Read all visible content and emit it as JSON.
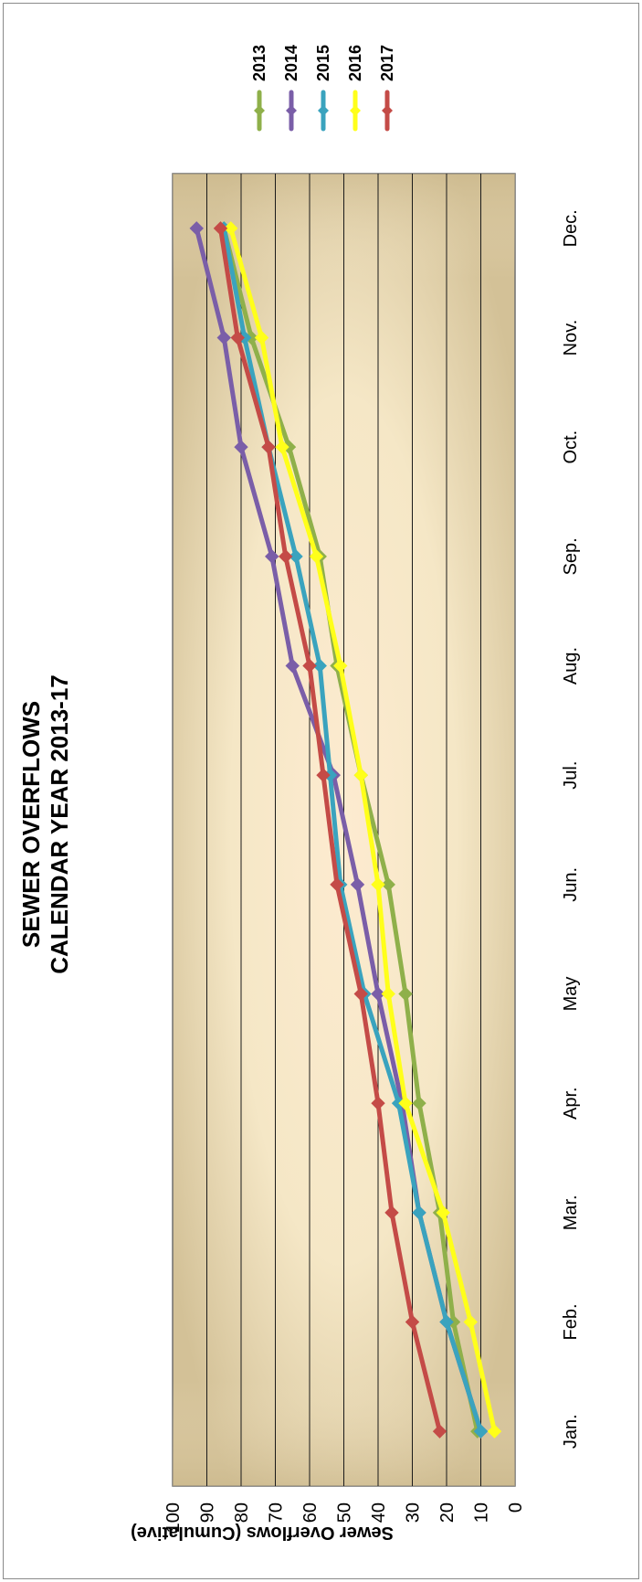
{
  "chart_data": {
    "type": "line",
    "title": "SEWER OVERFLOWS",
    "subtitle": "CALENDAR YEAR 2013-17",
    "xlabel": "",
    "ylabel": "Sewer Overflows (Cumulative)",
    "ylim": [
      0,
      100
    ],
    "yticks": [
      "0",
      "10",
      "20",
      "30",
      "40",
      "50",
      "60",
      "70",
      "80",
      "90",
      "100"
    ],
    "categories": [
      "Jan.",
      "Feb.",
      "Mar.",
      "Apr.",
      "May",
      "Jun.",
      "Jul.",
      "Aug.",
      "Sep.",
      "Oct.",
      "Nov.",
      "Dec."
    ],
    "grid": true,
    "legend_position": "right",
    "series": [
      {
        "name": "2013",
        "color": "#8fb04a",
        "values": [
          11,
          18,
          22,
          28,
          32,
          37,
          45,
          52,
          57,
          66,
          77,
          85
        ]
      },
      {
        "name": "2014",
        "color": "#7a5ea8",
        "values": [
          10,
          20,
          28,
          33,
          40,
          46,
          53,
          65,
          71,
          80,
          85,
          93
        ]
      },
      {
        "name": "2015",
        "color": "#3aa3be",
        "values": [
          10,
          20,
          28,
          34,
          44,
          51,
          54,
          57,
          64,
          72,
          79,
          85
        ]
      },
      {
        "name": "2016",
        "color": "#ffff1a",
        "values": [
          6,
          13,
          21,
          32,
          37,
          40,
          45,
          51,
          58,
          68,
          74,
          83
        ]
      },
      {
        "name": "2017",
        "color": "#c44b47",
        "values": [
          22,
          30,
          36,
          40,
          45,
          52,
          56,
          60,
          67,
          72,
          81,
          86
        ]
      }
    ]
  }
}
